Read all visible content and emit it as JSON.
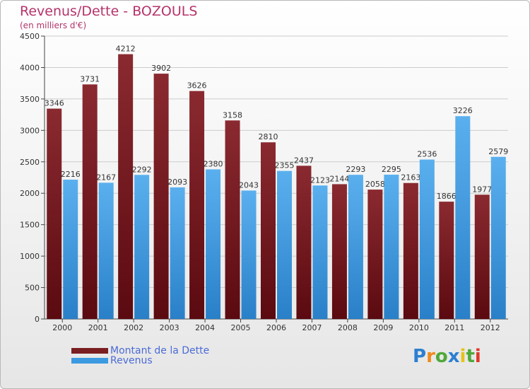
{
  "title": "Revenus/Dette - BOZOULS",
  "subtitle": "(en milliers d'€)",
  "colors": {
    "title": "#b5336a",
    "dette": "#7a1e22",
    "revenus": "#3b9ae0",
    "legend_text": "#4b6bd6"
  },
  "legend": {
    "dette_label": "Montant de la Dette",
    "revenus_label": "Revenus"
  },
  "logo": {
    "letters": [
      {
        "ch": "P",
        "color": "#2c7fd0"
      },
      {
        "ch": "r",
        "color": "#f08a1c"
      },
      {
        "ch": "o",
        "color": "#4fa83a"
      },
      {
        "ch": "x",
        "color": "#2c7fd0"
      },
      {
        "ch": "i",
        "color": "#e6c21a"
      },
      {
        "ch": "t",
        "color": "#4fa83a"
      },
      {
        "ch": "i",
        "color": "#e0382a"
      }
    ]
  },
  "chart_data": {
    "type": "bar",
    "categories": [
      "2000",
      "2001",
      "2002",
      "2003",
      "2004",
      "2005",
      "2006",
      "2007",
      "2008",
      "2009",
      "2010",
      "2011",
      "2012"
    ],
    "series": [
      {
        "name": "Montant de la Dette",
        "values": [
          3346,
          3731,
          4212,
          3902,
          3626,
          3158,
          2810,
          2437,
          2144,
          2058,
          2163,
          1866,
          1977
        ]
      },
      {
        "name": "Revenus",
        "values": [
          2216,
          2167,
          2292,
          2093,
          2380,
          2043,
          2355,
          2123,
          2293,
          2295,
          2536,
          3226,
          2579
        ]
      }
    ],
    "ylim": [
      0,
      4500
    ],
    "yticks": [
      0,
      500,
      1000,
      1500,
      2000,
      2500,
      3000,
      3500,
      4000,
      4500
    ],
    "grid": true,
    "legend_position": "bottom-left"
  }
}
